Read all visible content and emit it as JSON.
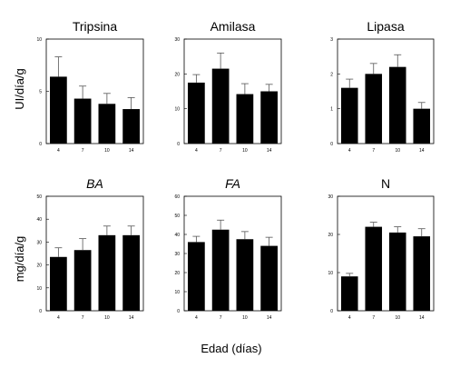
{
  "y_label_top": "UI/día/g",
  "y_label_bottom": "mg/día/g",
  "x_label": "Edad (días)",
  "chart_data": [
    {
      "type": "bar",
      "title": "Tripsina",
      "italic": false,
      "categories": [
        "4",
        "7",
        "10",
        "14"
      ],
      "values": [
        6.4,
        4.3,
        3.8,
        3.3
      ],
      "errors": [
        1.9,
        1.2,
        1.0,
        1.1
      ],
      "ylim": [
        0,
        10
      ],
      "yticks": [
        "0",
        "5",
        "10"
      ]
    },
    {
      "type": "bar",
      "title": "Amilasa",
      "italic": false,
      "categories": [
        "4",
        "7",
        "10",
        "14"
      ],
      "values": [
        17.5,
        21.5,
        14.2,
        15.0
      ],
      "errors": [
        2.3,
        4.5,
        3.0,
        2.0
      ],
      "ylim": [
        0,
        30
      ],
      "yticks": [
        "0",
        "10",
        "20",
        "30"
      ]
    },
    {
      "type": "bar",
      "title": "Lipasa",
      "italic": false,
      "categories": [
        "4",
        "7",
        "10",
        "14"
      ],
      "values": [
        1.6,
        2.0,
        2.2,
        1.0
      ],
      "errors": [
        0.25,
        0.3,
        0.35,
        0.18
      ],
      "ylim": [
        0,
        3
      ],
      "yticks": [
        "0",
        "1",
        "2",
        "3"
      ]
    },
    {
      "type": "bar",
      "title": "BA",
      "italic": true,
      "categories": [
        "4",
        "7",
        "10",
        "14"
      ],
      "values": [
        23.5,
        26.5,
        33.0,
        33.0
      ],
      "errors": [
        4.0,
        5.0,
        4.0,
        4.0
      ],
      "ylim": [
        0,
        50
      ],
      "yticks": [
        "0",
        "10",
        "20",
        "30",
        "40",
        "50"
      ]
    },
    {
      "type": "bar",
      "title": "FA",
      "italic": true,
      "categories": [
        "4",
        "7",
        "10",
        "14"
      ],
      "values": [
        36.0,
        42.5,
        37.5,
        34.0
      ],
      "errors": [
        3.0,
        5.0,
        4.0,
        4.5
      ],
      "ylim": [
        0,
        60
      ],
      "yticks": [
        "0",
        "10",
        "20",
        "30",
        "40",
        "50",
        "60"
      ]
    },
    {
      "type": "bar",
      "title": "N",
      "italic": false,
      "categories": [
        "4",
        "7",
        "10",
        "14"
      ],
      "values": [
        9.0,
        22.0,
        20.5,
        19.5
      ],
      "errors": [
        0.8,
        1.2,
        1.5,
        2.0
      ],
      "ylim": [
        0,
        30
      ],
      "yticks": [
        "0",
        "10",
        "20",
        "30"
      ]
    }
  ]
}
